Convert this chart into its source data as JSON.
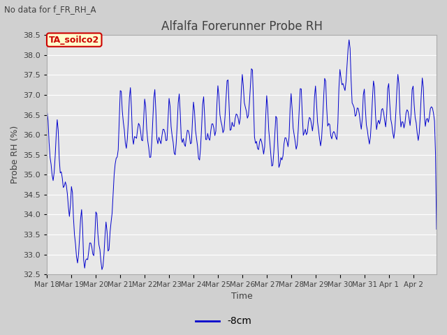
{
  "title": "Alfalfa Forerunner Probe RH",
  "subtitle": "No data for f_FR_RH_A",
  "ylabel": "Probe RH (%)",
  "xlabel": "Time",
  "legend_label": "-8cm",
  "legend_color": "#0000cc",
  "line_color": "#0000cc",
  "plot_bg_color": "#e8e8e8",
  "fig_bg_color": "#d0d0d0",
  "ylim": [
    32.5,
    38.5
  ],
  "yticks": [
    32.5,
    33.0,
    33.5,
    34.0,
    34.5,
    35.0,
    35.5,
    36.0,
    36.5,
    37.0,
    37.5,
    38.0,
    38.5
  ],
  "xtick_labels": [
    "Mar 18",
    "Mar 19",
    "Mar 20",
    "Mar 21",
    "Mar 22",
    "Mar 23",
    "Mar 24",
    "Mar 25",
    "Mar 26",
    "Mar 27",
    "Mar 28",
    "Mar 29",
    "Mar 30",
    "Mar 31",
    "Apr 1",
    "Apr 2"
  ],
  "seed": 42,
  "n_points": 384,
  "text_color": "#404040",
  "grid_color": "#ffffff",
  "label_box_facecolor": "#ffffcc",
  "label_box_edgecolor": "#cc0000",
  "label_text_color": "#cc0000"
}
